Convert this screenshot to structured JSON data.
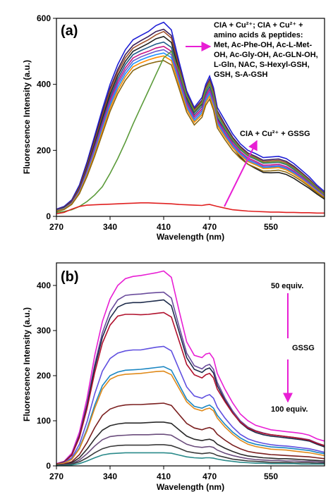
{
  "chart_data": [
    {
      "type": "line",
      "panel_label": "(a)",
      "xlabel": "Wavelength (nm)",
      "ylabel": "Fluorescence Intensity (a.u.)",
      "xlim": [
        270,
        620
      ],
      "ylim": [
        0,
        600
      ],
      "xticks": [
        270,
        340,
        410,
        470,
        550
      ],
      "yticks": [
        0,
        200,
        400,
        600
      ],
      "annotation_lines": [
        "CIA + Cu²⁺; CIA + Cu²⁺ +",
        "amino acids & peptides:",
        "Met, Ac-Phe-OH, Ac-L-Met-",
        "OH, Ac-Gly-OH, Ac-GLN-OH,",
        "L-Gln, NAC, S-Hexyl-GSH,",
        "GSH, S-A-GSH"
      ],
      "annotation2": "CIA + Cu²⁺ + GSSG",
      "arrow_color": "#e81ed4",
      "x": [
        270,
        280,
        290,
        300,
        310,
        320,
        330,
        340,
        350,
        360,
        370,
        380,
        390,
        400,
        410,
        420,
        430,
        440,
        450,
        460,
        465,
        470,
        475,
        480,
        490,
        500,
        510,
        520,
        530,
        540,
        550,
        560,
        570,
        580,
        590,
        600,
        610,
        620
      ],
      "series": [
        {
          "color": "#1f1fd6",
          "values": [
            22,
            30,
            50,
            95,
            165,
            245,
            325,
            400,
            460,
            505,
            535,
            548,
            560,
            578,
            588,
            565,
            470,
            380,
            330,
            360,
            400,
            425,
            390,
            330,
            290,
            250,
            220,
            200,
            190,
            178,
            180,
            182,
            175,
            160,
            140,
            120,
            95,
            75
          ]
        },
        {
          "color": "#3a1f5a",
          "values": [
            20,
            28,
            47,
            90,
            158,
            236,
            314,
            388,
            445,
            490,
            518,
            532,
            545,
            560,
            567,
            548,
            458,
            372,
            325,
            352,
            392,
            415,
            380,
            320,
            278,
            240,
            212,
            192,
            182,
            170,
            172,
            174,
            167,
            152,
            133,
            113,
            90,
            70
          ]
        },
        {
          "color": "#a0522d",
          "values": [
            19,
            27,
            45,
            86,
            152,
            228,
            305,
            380,
            437,
            480,
            510,
            523,
            535,
            550,
            560,
            540,
            452,
            368,
            322,
            348,
            388,
            410,
            375,
            315,
            272,
            235,
            208,
            188,
            178,
            166,
            168,
            170,
            163,
            148,
            130,
            110,
            88,
            68
          ]
        },
        {
          "color": "#222222",
          "values": [
            18,
            26,
            43,
            82,
            146,
            220,
            296,
            370,
            427,
            470,
            500,
            512,
            524,
            538,
            545,
            527,
            442,
            360,
            315,
            340,
            380,
            402,
            366,
            300,
            250,
            210,
            180,
            158,
            145,
            133,
            132,
            133,
            127,
            115,
            100,
            85,
            68,
            52
          ]
        },
        {
          "color": "#1e5a8a",
          "values": [
            18,
            25,
            42,
            80,
            142,
            214,
            288,
            360,
            417,
            460,
            490,
            502,
            512,
            522,
            528,
            512,
            432,
            352,
            308,
            333,
            372,
            393,
            358,
            300,
            262,
            228,
            202,
            183,
            173,
            161,
            162,
            164,
            157,
            142,
            125,
            105,
            84,
            64
          ]
        },
        {
          "color": "#c71585",
          "values": [
            17,
            24,
            41,
            78,
            138,
            208,
            280,
            352,
            408,
            450,
            480,
            492,
            500,
            510,
            515,
            500,
            423,
            345,
            302,
            326,
            365,
            385,
            350,
            293,
            255,
            222,
            196,
            177,
            167,
            155,
            156,
            158,
            151,
            137,
            120,
            101,
            81,
            62
          ]
        },
        {
          "color": "#6a5acd",
          "values": [
            17,
            24,
            40,
            76,
            134,
            202,
            273,
            344,
            400,
            441,
            471,
            483,
            492,
            500,
            505,
            490,
            415,
            338,
            296,
            320,
            358,
            378,
            343,
            287,
            250,
            217,
            192,
            173,
            163,
            151,
            152,
            154,
            147,
            134,
            117,
            99,
            79,
            60
          ]
        },
        {
          "color": "#1e90ff",
          "values": [
            16,
            23,
            39,
            74,
            130,
            196,
            266,
            336,
            391,
            432,
            462,
            474,
            483,
            490,
            495,
            481,
            407,
            331,
            290,
            314,
            351,
            371,
            336,
            281,
            245,
            212,
            188,
            169,
            159,
            148,
            149,
            151,
            144,
            131,
            114,
            96,
            77,
            58
          ]
        },
        {
          "color": "#ff8c00",
          "values": [
            16,
            22,
            38,
            72,
            126,
            190,
            259,
            328,
            382,
            423,
            453,
            465,
            474,
            481,
            486,
            472,
            399,
            325,
            285,
            308,
            345,
            364,
            330,
            276,
            240,
            208,
            184,
            166,
            156,
            145,
            146,
            148,
            141,
            128,
            112,
            94,
            75,
            57
          ]
        },
        {
          "color": "#8b6914",
          "values": [
            15,
            21,
            36,
            69,
            121,
            183,
            250,
            318,
            372,
            412,
            442,
            454,
            462,
            468,
            472,
            459,
            388,
            316,
            277,
            300,
            337,
            355,
            322,
            268,
            232,
            200,
            176,
            158,
            148,
            137,
            138,
            140,
            134,
            122,
            107,
            90,
            72,
            55
          ]
        },
        {
          "color": "#5b9b3a",
          "values": [
            12,
            15,
            20,
            30,
            45,
            65,
            90,
            130,
            175,
            225,
            280,
            330,
            380,
            430,
            480,
            500,
            440,
            365,
            318,
            343,
            382,
            403,
            367,
            308,
            268,
            232,
            205,
            185,
            175,
            163,
            164,
            166,
            159,
            145,
            127,
            107,
            86,
            66
          ]
        },
        {
          "color": "#e02020",
          "values": [
            8,
            12,
            22,
            30,
            34,
            35,
            36,
            37,
            38,
            39,
            40,
            41,
            41,
            40,
            39,
            38,
            36,
            35,
            34,
            33,
            35,
            36,
            33,
            30,
            25,
            20,
            18,
            16,
            15,
            14,
            13,
            13,
            12,
            12,
            11,
            11,
            10,
            10
          ]
        }
      ]
    },
    {
      "type": "line",
      "panel_label": "(b)",
      "xlabel": "Wavelength (nm)",
      "ylabel": "Fluorescence Intensity (a.u.)",
      "xlim": [
        270,
        620
      ],
      "ylim": [
        0,
        450
      ],
      "xticks": [
        270,
        340,
        410,
        470,
        550
      ],
      "yticks": [
        0,
        100,
        200,
        300,
        400
      ],
      "label_top": "50 equiv.",
      "label_mid": "GSSG",
      "label_bottom": "100 equiv.",
      "arrow_color": "#e81ed4",
      "x": [
        270,
        280,
        290,
        300,
        310,
        320,
        330,
        340,
        350,
        360,
        370,
        380,
        390,
        400,
        410,
        420,
        430,
        440,
        450,
        460,
        465,
        470,
        475,
        480,
        490,
        500,
        510,
        520,
        530,
        540,
        550,
        560,
        570,
        580,
        590,
        600,
        610,
        620
      ],
      "series": [
        {
          "color": "#e81ed4",
          "values": [
            5,
            10,
            28,
            75,
            150,
            245,
            320,
            370,
            400,
            415,
            420,
            422,
            425,
            428,
            432,
            418,
            345,
            275,
            245,
            240,
            248,
            250,
            238,
            205,
            170,
            140,
            115,
            100,
            90,
            85,
            80,
            78,
            76,
            74,
            72,
            68,
            60,
            55
          ]
        },
        {
          "color": "#6a4c9c",
          "values": [
            4,
            9,
            25,
            68,
            138,
            225,
            295,
            342,
            368,
            378,
            380,
            381,
            383,
            384,
            385,
            372,
            310,
            250,
            222,
            215,
            222,
            225,
            214,
            185,
            150,
            122,
            100,
            86,
            78,
            73,
            69,
            67,
            65,
            63,
            61,
            58,
            51,
            45
          ]
        },
        {
          "color": "#1c2a4a",
          "values": [
            4,
            9,
            24,
            66,
            133,
            218,
            285,
            328,
            352,
            360,
            362,
            362,
            364,
            366,
            368,
            355,
            298,
            240,
            214,
            207,
            214,
            217,
            206,
            178,
            145,
            118,
            96,
            82,
            74,
            69,
            66,
            64,
            62,
            60,
            58,
            55,
            48,
            42
          ]
        },
        {
          "color": "#b0102c",
          "values": [
            4,
            8,
            23,
            63,
            127,
            207,
            272,
            312,
            332,
            336,
            336,
            335,
            336,
            338,
            340,
            330,
            278,
            225,
            202,
            195,
            202,
            205,
            195,
            170,
            142,
            117,
            97,
            84,
            77,
            72,
            69,
            67,
            65,
            63,
            60,
            57,
            50,
            45
          ]
        },
        {
          "color": "#6050e0",
          "values": [
            3,
            7,
            18,
            48,
            98,
            160,
            210,
            238,
            250,
            255,
            257,
            257,
            260,
            263,
            265,
            255,
            215,
            175,
            155,
            150,
            155,
            158,
            150,
            130,
            106,
            86,
            70,
            60,
            54,
            50,
            47,
            45,
            44,
            42,
            40,
            38,
            34,
            30
          ]
        },
        {
          "color": "#1a86c2",
          "values": [
            3,
            6,
            15,
            40,
            82,
            135,
            178,
            200,
            208,
            212,
            213,
            214,
            216,
            218,
            220,
            212,
            180,
            148,
            132,
            128,
            132,
            135,
            128,
            112,
            92,
            75,
            62,
            53,
            48,
            45,
            42,
            41,
            40,
            38,
            36,
            34,
            30,
            27
          ]
        },
        {
          "color": "#e08a1a",
          "values": [
            3,
            6,
            14,
            38,
            78,
            128,
            170,
            192,
            200,
            203,
            204,
            205,
            207,
            209,
            210,
            202,
            172,
            142,
            127,
            122,
            126,
            128,
            122,
            106,
            86,
            70,
            57,
            48,
            43,
            40,
            37,
            36,
            35,
            33,
            31,
            29,
            26,
            23
          ]
        },
        {
          "color": "#7a1e1e",
          "values": [
            2,
            4,
            9,
            25,
            52,
            85,
            112,
            126,
            132,
            135,
            136,
            136,
            137,
            138,
            139,
            134,
            114,
            94,
            84,
            80,
            83,
            85,
            81,
            70,
            57,
            46,
            38,
            32,
            29,
            27,
            25,
            24,
            23,
            22,
            21,
            20,
            18,
            16
          ]
        },
        {
          "color": "#2a2a2a",
          "values": [
            2,
            3,
            7,
            18,
            37,
            60,
            79,
            89,
            93,
            95,
            95,
            95,
            96,
            97,
            97,
            94,
            80,
            66,
            59,
            56,
            58,
            59,
            56,
            48,
            39,
            32,
            26,
            22,
            20,
            18,
            17,
            16,
            16,
            15,
            14,
            13,
            12,
            11
          ]
        },
        {
          "color": "#6a4c7c",
          "values": [
            1,
            3,
            5,
            13,
            27,
            44,
            58,
            65,
            67,
            68,
            69,
            69,
            69,
            70,
            70,
            68,
            58,
            48,
            43,
            41,
            42,
            43,
            41,
            35,
            28,
            23,
            19,
            16,
            14,
            13,
            12,
            12,
            11,
            11,
            10,
            10,
            9,
            8
          ]
        },
        {
          "color": "#3a3a3a",
          "values": [
            1,
            2,
            4,
            9,
            18,
            29,
            38,
            43,
            45,
            46,
            46,
            46,
            46,
            47,
            47,
            45,
            39,
            32,
            29,
            27,
            28,
            29,
            27,
            23,
            19,
            15,
            13,
            11,
            10,
            9,
            8,
            8,
            8,
            7,
            7,
            7,
            6,
            6
          ]
        },
        {
          "color": "#2a8a8a",
          "values": [
            1,
            1,
            2,
            5,
            11,
            18,
            24,
            27,
            28,
            29,
            29,
            29,
            29,
            29,
            29,
            28,
            24,
            20,
            18,
            17,
            18,
            18,
            17,
            15,
            12,
            10,
            8,
            7,
            6,
            6,
            5,
            5,
            5,
            5,
            4,
            4,
            4,
            4
          ]
        }
      ]
    }
  ]
}
